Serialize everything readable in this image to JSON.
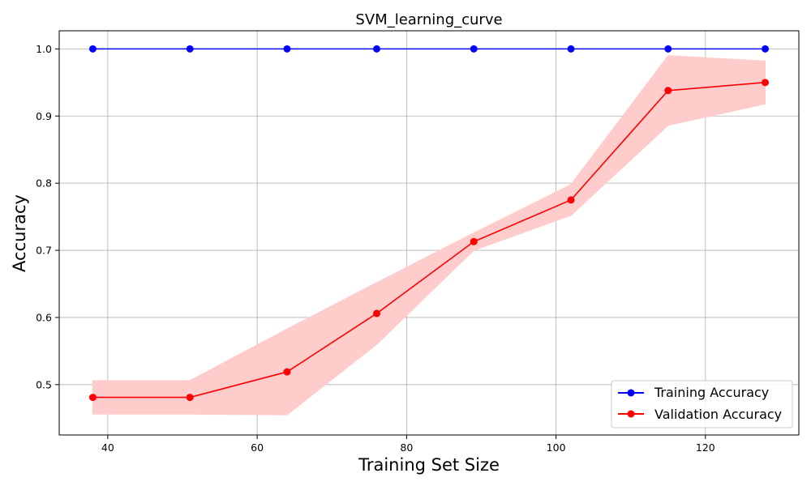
{
  "chart_data": {
    "type": "line",
    "title": "SVM_learning_curve",
    "xlabel": "Training Set Size",
    "ylabel": "Accuracy",
    "xlim": [
      33.5,
      132.5
    ],
    "ylim": [
      0.425,
      1.027
    ],
    "xticks": [
      40,
      60,
      80,
      100,
      120
    ],
    "yticks": [
      0.5,
      0.6,
      0.7,
      0.8,
      0.9,
      1.0
    ],
    "xtick_labels": [
      "40",
      "60",
      "80",
      "100",
      "120"
    ],
    "ytick_labels": [
      "0.5",
      "0.6",
      "0.7",
      "0.8",
      "0.9",
      "1.0"
    ],
    "grid": true,
    "legend_position": "bottom-right",
    "x": [
      38,
      51,
      64,
      76,
      89,
      102,
      115,
      128
    ],
    "series": [
      {
        "name": "Training Accuracy",
        "color": "#0000ff",
        "values": [
          1.0,
          1.0,
          1.0,
          1.0,
          1.0,
          1.0,
          1.0,
          1.0
        ]
      },
      {
        "name": "Validation Accuracy",
        "color": "#ff0000",
        "values": [
          0.481,
          0.481,
          0.519,
          0.606,
          0.713,
          0.775,
          0.938,
          0.95
        ],
        "band_lower": [
          0.456,
          0.456,
          0.455,
          0.56,
          0.7,
          0.752,
          0.886,
          0.918
        ],
        "band_upper": [
          0.506,
          0.506,
          0.583,
          0.652,
          0.726,
          0.798,
          0.99,
          0.982
        ],
        "band_color": "#ffcccc"
      }
    ]
  }
}
